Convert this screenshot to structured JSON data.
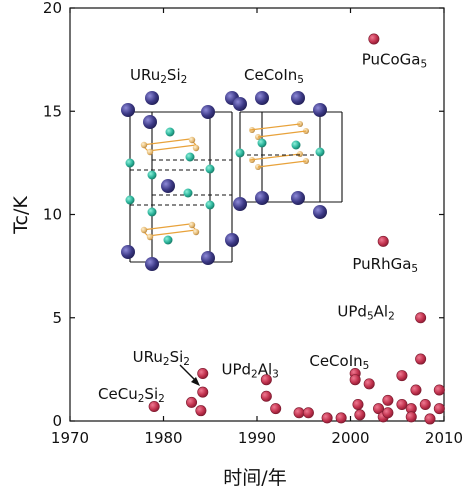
{
  "chart_data": {
    "type": "scatter",
    "xlabel": "时间/年",
    "ylabel": "Tc/K",
    "xlim": [
      1970,
      2010
    ],
    "ylim": [
      0,
      20
    ],
    "xticks": [
      "1970",
      "1980",
      "1990",
      "2000",
      "2010"
    ],
    "yticks": [
      "0",
      "5",
      "10",
      "15",
      "20"
    ],
    "grid": false,
    "marker_color": "#c2334f",
    "points": [
      {
        "x": 1979.0,
        "y": 0.7
      },
      {
        "x": 1983.0,
        "y": 0.9
      },
      {
        "x": 1984.0,
        "y": 0.5
      },
      {
        "x": 1984.2,
        "y": 1.4
      },
      {
        "x": 1984.2,
        "y": 2.3
      },
      {
        "x": 1991.0,
        "y": 2.0
      },
      {
        "x": 1991.0,
        "y": 1.2
      },
      {
        "x": 1992.0,
        "y": 0.6
      },
      {
        "x": 1994.5,
        "y": 0.4
      },
      {
        "x": 1995.5,
        "y": 0.4
      },
      {
        "x": 1997.5,
        "y": 0.15
      },
      {
        "x": 1999.0,
        "y": 0.15
      },
      {
        "x": 2000.5,
        "y": 2.3
      },
      {
        "x": 2000.5,
        "y": 2.0
      },
      {
        "x": 2000.8,
        "y": 0.8
      },
      {
        "x": 2001.0,
        "y": 0.3
      },
      {
        "x": 2002.0,
        "y": 1.8
      },
      {
        "x": 2002.5,
        "y": 18.5
      },
      {
        "x": 2003.0,
        "y": 0.6
      },
      {
        "x": 2003.5,
        "y": 0.2
      },
      {
        "x": 2003.5,
        "y": 8.7
      },
      {
        "x": 2004.0,
        "y": 1.0
      },
      {
        "x": 2004.0,
        "y": 0.4
      },
      {
        "x": 2005.5,
        "y": 2.2
      },
      {
        "x": 2005.5,
        "y": 0.8
      },
      {
        "x": 2006.5,
        "y": 0.6
      },
      {
        "x": 2006.5,
        "y": 0.2
      },
      {
        "x": 2007.0,
        "y": 1.5
      },
      {
        "x": 2007.5,
        "y": 3.0
      },
      {
        "x": 2007.5,
        "y": 5.0
      },
      {
        "x": 2008.0,
        "y": 0.8
      },
      {
        "x": 2008.5,
        "y": 0.1
      },
      {
        "x": 2009.5,
        "y": 1.5
      },
      {
        "x": 2009.5,
        "y": 0.6
      }
    ],
    "annotations": [
      {
        "text": "PuCoGa5",
        "base": "PuCoGa",
        "sub": "5",
        "x": 2001.2,
        "y": 17.5
      },
      {
        "text": "PuRhGa5",
        "base": "PuRhGa",
        "sub": "5",
        "x": 2000.2,
        "y": 7.6
      },
      {
        "text": "UPd5Al2",
        "parts": [
          "UPd",
          "5",
          "Al",
          "2"
        ],
        "x": 1998.6,
        "y": 5.3
      },
      {
        "text": "UPd2Al3",
        "parts": [
          "UPd",
          "2",
          "Al",
          "3"
        ],
        "x": 1986.2,
        "y": 2.5
      },
      {
        "text": "CeCoIn5",
        "base": "CeCoIn",
        "sub": "5",
        "x": 1995.6,
        "y": 2.9
      },
      {
        "text": "URu2Si2",
        "parts": [
          "URu",
          "2",
          "Si",
          "2"
        ],
        "x": 1976.7,
        "y": 3.1
      },
      {
        "text": "CeCu2Si2",
        "parts": [
          "CeCu",
          "2",
          "Si",
          "2"
        ],
        "x": 1973.0,
        "y": 1.3
      }
    ],
    "insets": [
      {
        "title": "URu2Si2",
        "parts": [
          "URu",
          "2",
          "Si",
          "2"
        ]
      },
      {
        "title": "CeCoIn5",
        "parts": [
          "CeCoIn",
          "5"
        ]
      }
    ],
    "inset_colors": {
      "large_atom": "#3d3a87",
      "small_atom": "#2bb39a",
      "gold_atom": "#e2b46a",
      "bond": "#e8a23a",
      "frame": "#111111"
    }
  }
}
